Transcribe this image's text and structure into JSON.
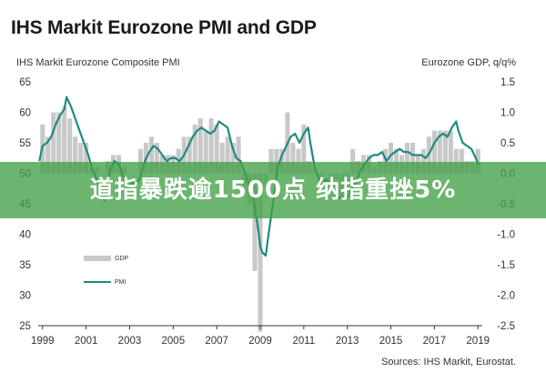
{
  "chart_data": {
    "type": "bar+line",
    "title": "IHS Markit Eurozone PMI and GDP",
    "left_axis_label": "IHS Markit Eurozone Composite PMI",
    "right_axis_label": "Eurozone GDP, q/q%",
    "source": "Sources: IHS Markit, Eurostat.",
    "x_range": [
      1998.8,
      2019.2
    ],
    "x_ticks": [
      "1999",
      "2001",
      "2003",
      "2005",
      "2007",
      "2009",
      "2011",
      "2013",
      "2015",
      "2017",
      "2019"
    ],
    "left_ylim": [
      25,
      65
    ],
    "left_ticks": [
      "25",
      "30",
      "35",
      "40",
      "45",
      "50",
      "55",
      "60",
      "65"
    ],
    "right_ylim": [
      -2.5,
      1.5
    ],
    "right_ticks": [
      "-2.5",
      "-2.0",
      "-1.5",
      "-1.0",
      "-0.5",
      "0.0",
      "0.5",
      "1.0",
      "1.5"
    ],
    "grid": false,
    "legend_position": "lower-left",
    "colors": {
      "gdp": "#c8c8c8",
      "pmi": "#1f8a80"
    },
    "series": [
      {
        "name": "GDP",
        "axis": "right",
        "kind": "bar",
        "x": [
          1999.0,
          1999.25,
          1999.5,
          1999.75,
          2000.0,
          2000.25,
          2000.5,
          2000.75,
          2001.0,
          2001.25,
          2001.5,
          2001.75,
          2002.0,
          2002.25,
          2002.5,
          2002.75,
          2003.0,
          2003.25,
          2003.5,
          2003.75,
          2004.0,
          2004.25,
          2004.5,
          2004.75,
          2005.0,
          2005.25,
          2005.5,
          2005.75,
          2006.0,
          2006.25,
          2006.5,
          2006.75,
          2007.0,
          2007.25,
          2007.5,
          2007.75,
          2008.0,
          2008.25,
          2008.5,
          2008.75,
          2009.0,
          2009.25,
          2009.5,
          2009.75,
          2010.0,
          2010.25,
          2010.5,
          2010.75,
          2011.0,
          2011.25,
          2011.5,
          2011.75,
          2012.0,
          2012.25,
          2012.5,
          2012.75,
          2013.0,
          2013.25,
          2013.5,
          2013.75,
          2014.0,
          2014.25,
          2014.5,
          2014.75,
          2015.0,
          2015.25,
          2015.5,
          2015.75,
          2016.0,
          2016.25,
          2016.5,
          2016.75,
          2017.0,
          2017.25,
          2017.5,
          2017.75,
          2018.0,
          2018.25,
          2018.5,
          2018.75,
          2019.0
        ],
        "values": [
          0.8,
          0.6,
          1.0,
          1.0,
          1.1,
          0.9,
          0.6,
          0.5,
          0.5,
          0.1,
          0.1,
          0.0,
          0.2,
          0.3,
          0.3,
          0.1,
          0.0,
          0.0,
          0.4,
          0.5,
          0.6,
          0.5,
          0.3,
          0.3,
          0.3,
          0.4,
          0.6,
          0.6,
          0.8,
          0.9,
          0.7,
          0.9,
          0.8,
          0.5,
          0.6,
          0.5,
          0.6,
          -0.2,
          -0.5,
          -1.6,
          -2.6,
          -0.2,
          0.4,
          0.4,
          0.4,
          1.0,
          0.5,
          0.4,
          0.8,
          0.2,
          0.1,
          -0.2,
          0.0,
          -0.3,
          -0.1,
          -0.4,
          -0.3,
          0.4,
          0.2,
          0.3,
          0.3,
          0.1,
          0.2,
          0.4,
          0.5,
          0.4,
          0.3,
          0.5,
          0.5,
          0.3,
          0.4,
          0.6,
          0.7,
          0.7,
          0.7,
          0.7,
          0.4,
          0.4,
          0.2,
          0.2,
          0.4
        ]
      },
      {
        "name": "PMI",
        "axis": "left",
        "kind": "line",
        "x": [
          1998.85,
          1999.0,
          1999.2,
          1999.4,
          1999.6,
          1999.8,
          2000.0,
          2000.1,
          2000.3,
          2000.5,
          2000.7,
          2000.9,
          2001.1,
          2001.3,
          2001.5,
          2001.7,
          2001.85,
          2002.0,
          2002.1,
          2002.3,
          2002.5,
          2002.7,
          2002.9,
          2003.1,
          2003.3,
          2003.5,
          2003.7,
          2003.9,
          2004.1,
          2004.3,
          2004.5,
          2004.7,
          2004.9,
          2005.1,
          2005.3,
          2005.5,
          2005.7,
          2005.9,
          2006.1,
          2006.3,
          2006.5,
          2006.7,
          2006.9,
          2007.1,
          2007.3,
          2007.5,
          2007.7,
          2007.9,
          2008.1,
          2008.3,
          2008.5,
          2008.7,
          2008.9,
          2009.0,
          2009.1,
          2009.25,
          2009.4,
          2009.6,
          2009.8,
          2010.0,
          2010.2,
          2010.4,
          2010.6,
          2010.8,
          2011.0,
          2011.2,
          2011.3,
          2011.5,
          2011.7,
          2011.85,
          2012.0,
          2012.2,
          2012.4,
          2012.6,
          2012.8,
          2013.0,
          2013.2,
          2013.4,
          2013.6,
          2013.8,
          2014.0,
          2014.2,
          2014.4,
          2014.6,
          2014.8,
          2015.0,
          2015.2,
          2015.4,
          2015.6,
          2015.8,
          2016.0,
          2016.2,
          2016.4,
          2016.6,
          2016.8,
          2017.0,
          2017.2,
          2017.4,
          2017.6,
          2017.8,
          2018.0,
          2018.1,
          2018.3,
          2018.5,
          2018.7,
          2018.9,
          2019.0,
          2019.1
        ],
        "values": [
          52.0,
          54.5,
          55.0,
          56.0,
          58.0,
          59.5,
          60.5,
          62.5,
          61.0,
          59.0,
          57.0,
          55.0,
          53.0,
          50.5,
          49.0,
          47.0,
          45.5,
          48.0,
          50.5,
          52.0,
          51.5,
          49.5,
          47.5,
          48.5,
          48.0,
          49.5,
          52.0,
          53.5,
          54.5,
          54.0,
          53.0,
          52.0,
          52.5,
          52.5,
          52.0,
          53.0,
          54.5,
          56.0,
          57.0,
          57.5,
          57.0,
          56.5,
          57.0,
          58.5,
          58.0,
          57.5,
          54.5,
          52.5,
          52.0,
          50.0,
          48.0,
          45.5,
          41.0,
          38.0,
          37.0,
          36.5,
          40.5,
          45.5,
          51.0,
          53.0,
          54.5,
          56.0,
          56.5,
          55.0,
          56.5,
          57.5,
          55.0,
          51.0,
          49.0,
          47.5,
          49.0,
          48.5,
          46.5,
          46.0,
          46.0,
          46.0,
          47.5,
          48.5,
          50.5,
          51.5,
          52.5,
          53.0,
          53.0,
          53.5,
          52.0,
          53.0,
          53.5,
          54.0,
          53.5,
          53.5,
          53.0,
          53.0,
          53.0,
          52.5,
          53.5,
          55.0,
          56.0,
          56.5,
          56.0,
          57.5,
          58.5,
          57.0,
          55.0,
          54.5,
          54.0,
          52.5,
          51.5,
          51.5
        ]
      }
    ]
  },
  "banner": {
    "text": "道指暴跌逾1500点 纳指重挫5%"
  }
}
